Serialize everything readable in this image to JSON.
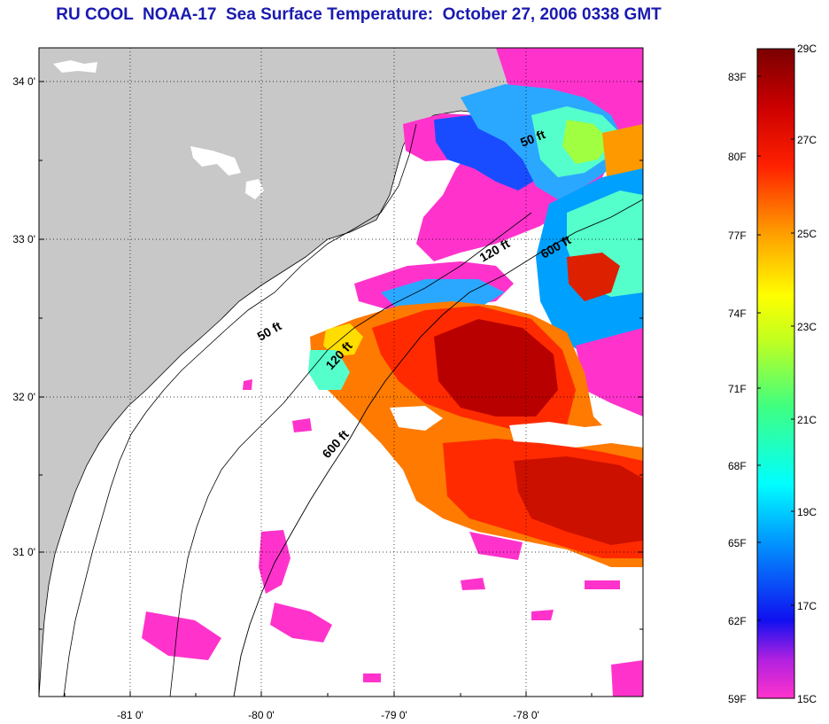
{
  "title": "RU COOL  NOAA-17  Sea Surface Temperature:  October 27, 2006 0338 GMT",
  "axes": {
    "lat_labels": [
      "34 0'",
      "33 0'",
      "32 0'",
      "31 0'"
    ],
    "lon_labels": [
      "-81 0'",
      "-80 0'",
      "-79 0'",
      "-78 0'"
    ]
  },
  "isobaths": {
    "north": [
      "50 ft",
      "120 ft",
      "600 ft"
    ],
    "south": [
      "50 ft",
      "120 ft",
      "600 ft"
    ]
  },
  "colorbar": {
    "fahrenheit": [
      "83F",
      "80F",
      "77F",
      "74F",
      "71F",
      "68F",
      "65F",
      "62F",
      "59F"
    ],
    "celsius": [
      "29C",
      "27C",
      "25C",
      "23C",
      "21C",
      "19C",
      "17C",
      "15C"
    ]
  },
  "colors": {
    "land": "#c8c8c8",
    "title": "#1a1ab0",
    "hot": "#b00000",
    "cold": "#ff33cc"
  }
}
